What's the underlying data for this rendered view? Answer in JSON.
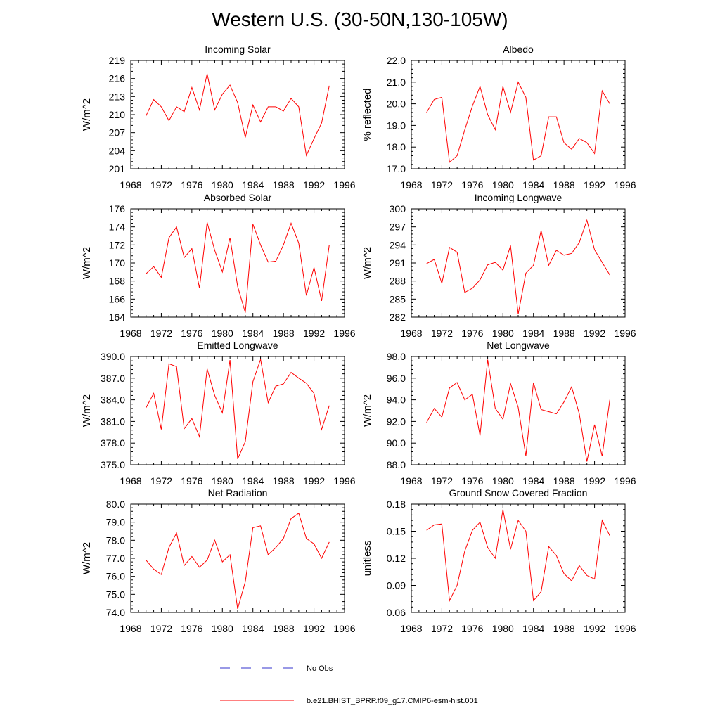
{
  "title": "Western U.S. (30-50N,130-105W)",
  "legend": {
    "items": [
      {
        "label": "No Obs",
        "color": "#3333cc",
        "style": "dashed"
      },
      {
        "label": "b.e21.BHIST_BPRP.f09_g17.CMIP6-esm-hist.001",
        "color": "#ff0000",
        "style": "solid"
      }
    ]
  },
  "chart_data": [
    {
      "type": "line",
      "title": "Incoming Solar",
      "xlabel": "",
      "ylabel": "W/m^2",
      "xlim": [
        1968,
        1996
      ],
      "ylim": [
        201,
        219
      ],
      "xticks": [
        "1968",
        "1972",
        "1976",
        "1980",
        "1984",
        "1988",
        "1992",
        "1996"
      ],
      "yticks": [
        "201",
        "204",
        "207",
        "210",
        "213",
        "216",
        "219"
      ],
      "series": [
        {
          "color": "#ff0000",
          "x": [
            1970,
            1971,
            1972,
            1973,
            1974,
            1975,
            1976,
            1977,
            1978,
            1979,
            1980,
            1981,
            1982,
            1983,
            1984,
            1985,
            1986,
            1987,
            1988,
            1989,
            1990,
            1991,
            1992,
            1993,
            1994
          ],
          "values": [
            209.8,
            212.5,
            211.3,
            209.0,
            211.3,
            210.5,
            214.5,
            210.8,
            216.8,
            210.8,
            213.4,
            214.9,
            212.0,
            206.2,
            211.6,
            208.8,
            211.3,
            211.3,
            210.6,
            212.7,
            211.3,
            203.2,
            206.0,
            208.6,
            214.8
          ]
        }
      ]
    },
    {
      "type": "line",
      "title": "Albedo",
      "xlabel": "",
      "ylabel": "% reflected",
      "xlim": [
        1968,
        1996
      ],
      "ylim": [
        17.0,
        22.0
      ],
      "xticks": [
        "1968",
        "1972",
        "1976",
        "1980",
        "1984",
        "1988",
        "1992",
        "1996"
      ],
      "yticks": [
        "17.0",
        "18.0",
        "19.0",
        "20.0",
        "21.0",
        "22.0"
      ],
      "series": [
        {
          "color": "#ff0000",
          "x": [
            1970,
            1971,
            1972,
            1973,
            1974,
            1975,
            1976,
            1977,
            1978,
            1979,
            1980,
            1981,
            1982,
            1983,
            1984,
            1985,
            1986,
            1987,
            1988,
            1989,
            1990,
            1991,
            1992,
            1993,
            1994
          ],
          "values": [
            19.6,
            20.2,
            20.3,
            17.3,
            17.6,
            18.8,
            19.9,
            20.8,
            19.5,
            18.8,
            20.8,
            19.6,
            21.0,
            20.3,
            17.4,
            17.6,
            19.4,
            19.4,
            18.2,
            17.9,
            18.4,
            18.2,
            17.7,
            20.6,
            20.0
          ]
        }
      ]
    },
    {
      "type": "line",
      "title": "Absorbed Solar",
      "xlabel": "",
      "ylabel": "W/m^2",
      "xlim": [
        1968,
        1996
      ],
      "ylim": [
        164,
        176
      ],
      "xticks": [
        "1968",
        "1972",
        "1976",
        "1980",
        "1984",
        "1988",
        "1992",
        "1996"
      ],
      "yticks": [
        "164",
        "166",
        "168",
        "170",
        "172",
        "174",
        "176"
      ],
      "series": [
        {
          "color": "#ff0000",
          "x": [
            1970,
            1971,
            1972,
            1973,
            1974,
            1975,
            1976,
            1977,
            1978,
            1979,
            1980,
            1981,
            1982,
            1983,
            1984,
            1985,
            1986,
            1987,
            1988,
            1989,
            1990,
            1991,
            1992,
            1993,
            1994
          ],
          "values": [
            168.8,
            169.6,
            168.4,
            172.8,
            174.0,
            170.6,
            171.6,
            167.2,
            174.5,
            171.4,
            169.0,
            172.8,
            167.4,
            164.5,
            174.3,
            172.0,
            170.1,
            170.2,
            172.0,
            174.4,
            172.2,
            166.4,
            169.5,
            165.8,
            172.0
          ]
        }
      ]
    },
    {
      "type": "line",
      "title": "Incoming Longwave",
      "xlabel": "",
      "ylabel": "W/m^2",
      "xlim": [
        1968,
        1996
      ],
      "ylim": [
        282,
        300
      ],
      "xticks": [
        "1968",
        "1972",
        "1976",
        "1980",
        "1984",
        "1988",
        "1992",
        "1996"
      ],
      "yticks": [
        "282",
        "285",
        "288",
        "291",
        "294",
        "297",
        "300"
      ],
      "series": [
        {
          "color": "#ff0000",
          "x": [
            1970,
            1971,
            1972,
            1973,
            1974,
            1975,
            1976,
            1977,
            1978,
            1979,
            1980,
            1981,
            1982,
            1983,
            1984,
            1985,
            1986,
            1987,
            1988,
            1989,
            1990,
            1991,
            1992,
            1993,
            1994
          ],
          "values": [
            290.9,
            291.6,
            287.6,
            293.6,
            292.8,
            286.1,
            286.8,
            288.2,
            290.7,
            291.1,
            289.8,
            293.9,
            282.5,
            289.3,
            290.6,
            296.4,
            290.6,
            293.1,
            292.3,
            292.6,
            294.4,
            298.1,
            293.2,
            291.1,
            289.0
          ]
        }
      ]
    },
    {
      "type": "line",
      "title": "Emitted Longwave",
      "xlabel": "",
      "ylabel": "W/m^2",
      "xlim": [
        1968,
        1996
      ],
      "ylim": [
        375.0,
        390.0
      ],
      "xticks": [
        "1968",
        "1972",
        "1976",
        "1980",
        "1984",
        "1988",
        "1992",
        "1996"
      ],
      "yticks": [
        "375.0",
        "378.0",
        "381.0",
        "384.0",
        "387.0",
        "390.0"
      ],
      "series": [
        {
          "color": "#ff0000",
          "x": [
            1970,
            1971,
            1972,
            1973,
            1974,
            1975,
            1976,
            1977,
            1978,
            1979,
            1980,
            1981,
            1982,
            1983,
            1984,
            1985,
            1986,
            1987,
            1988,
            1989,
            1990,
            1991,
            1992,
            1993,
            1994
          ],
          "values": [
            382.9,
            384.9,
            379.9,
            389.0,
            388.6,
            380.0,
            381.4,
            378.9,
            388.3,
            384.6,
            382.2,
            389.5,
            375.8,
            378.2,
            386.5,
            389.6,
            383.6,
            385.9,
            386.2,
            387.8,
            387.0,
            386.3,
            384.9,
            379.9,
            383.2
          ]
        }
      ]
    },
    {
      "type": "line",
      "title": "Net Longwave",
      "xlabel": "",
      "ylabel": "W/m^2",
      "xlim": [
        1968,
        1996
      ],
      "ylim": [
        88.0,
        98.0
      ],
      "xticks": [
        "1968",
        "1972",
        "1976",
        "1980",
        "1984",
        "1988",
        "1992",
        "1996"
      ],
      "yticks": [
        "88.0",
        "90.0",
        "92.0",
        "94.0",
        "96.0",
        "98.0"
      ],
      "series": [
        {
          "color": "#ff0000",
          "x": [
            1970,
            1971,
            1972,
            1973,
            1974,
            1975,
            1976,
            1977,
            1978,
            1979,
            1980,
            1981,
            1982,
            1983,
            1984,
            1985,
            1986,
            1987,
            1988,
            1989,
            1990,
            1991,
            1992,
            1993,
            1994
          ],
          "values": [
            91.9,
            93.2,
            92.4,
            95.1,
            95.6,
            94.0,
            94.5,
            90.7,
            97.7,
            93.2,
            92.2,
            95.5,
            93.3,
            88.8,
            95.6,
            93.1,
            92.9,
            92.7,
            93.8,
            95.2,
            92.7,
            88.3,
            91.7,
            88.8,
            94.0
          ]
        }
      ]
    },
    {
      "type": "line",
      "title": "Net Radiation",
      "xlabel": "",
      "ylabel": "W/m^2",
      "xlim": [
        1968,
        1996
      ],
      "ylim": [
        74.0,
        80.0
      ],
      "xticks": [
        "1968",
        "1972",
        "1976",
        "1980",
        "1984",
        "1988",
        "1992",
        "1996"
      ],
      "yticks": [
        "74.0",
        "75.0",
        "76.0",
        "77.0",
        "78.0",
        "79.0",
        "80.0"
      ],
      "series": [
        {
          "color": "#ff0000",
          "x": [
            1970,
            1971,
            1972,
            1973,
            1974,
            1975,
            1976,
            1977,
            1978,
            1979,
            1980,
            1981,
            1982,
            1983,
            1984,
            1985,
            1986,
            1987,
            1988,
            1989,
            1990,
            1991,
            1992,
            1993,
            1994
          ],
          "values": [
            76.9,
            76.4,
            76.1,
            77.6,
            78.4,
            76.6,
            77.1,
            76.5,
            76.9,
            78.0,
            76.8,
            77.2,
            74.2,
            75.7,
            78.7,
            78.8,
            77.2,
            77.6,
            78.1,
            79.2,
            79.5,
            78.1,
            77.8,
            77.0,
            77.9
          ]
        }
      ]
    },
    {
      "type": "line",
      "title": "Ground Snow Covered Fraction",
      "xlabel": "",
      "ylabel": "unitless",
      "xlim": [
        1968,
        1996
      ],
      "ylim": [
        0.06,
        0.18
      ],
      "xticks": [
        "1968",
        "1972",
        "1976",
        "1980",
        "1984",
        "1988",
        "1992",
        "1996"
      ],
      "yticks": [
        "0.06",
        "0.09",
        "0.12",
        "0.15",
        "0.18"
      ],
      "series": [
        {
          "color": "#ff0000",
          "x": [
            1970,
            1971,
            1972,
            1973,
            1974,
            1975,
            1976,
            1977,
            1978,
            1979,
            1980,
            1981,
            1982,
            1983,
            1984,
            1985,
            1986,
            1987,
            1988,
            1989,
            1990,
            1991,
            1992,
            1993,
            1994
          ],
          "values": [
            0.151,
            0.157,
            0.158,
            0.073,
            0.09,
            0.128,
            0.151,
            0.16,
            0.132,
            0.12,
            0.174,
            0.13,
            0.162,
            0.15,
            0.073,
            0.083,
            0.133,
            0.123,
            0.103,
            0.095,
            0.112,
            0.101,
            0.097,
            0.162,
            0.145
          ]
        }
      ]
    }
  ]
}
